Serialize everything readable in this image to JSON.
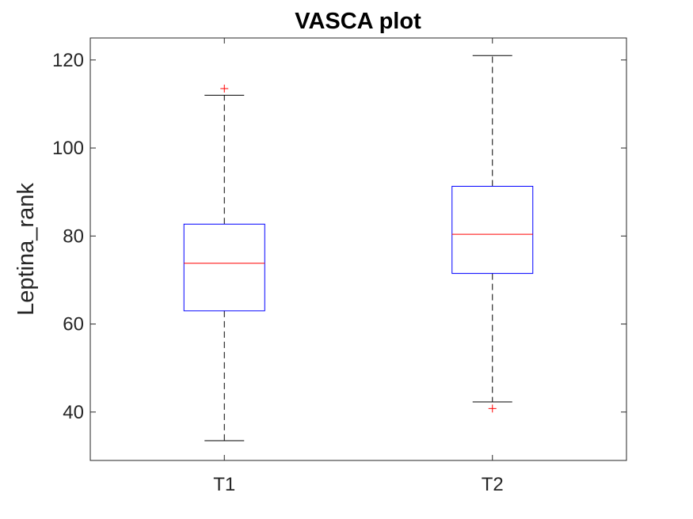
{
  "chart_data": {
    "type": "box",
    "title": "VASCA plot",
    "ylabel": "Leptina_rank",
    "xlabel": "",
    "categories": [
      "T1",
      "T2"
    ],
    "ylim": [
      29,
      125
    ],
    "yticks": [
      40,
      60,
      80,
      100,
      120
    ],
    "grid": false,
    "legend": "none",
    "boxes": [
      {
        "category": "T1",
        "whisker_low": 33.5,
        "q1": 63,
        "median": 73.8,
        "q3": 82.7,
        "whisker_high": 112,
        "outliers": [
          113.5
        ]
      },
      {
        "category": "T2",
        "whisker_low": 42.3,
        "q1": 71.5,
        "median": 80.4,
        "q3": 91.3,
        "whisker_high": 121,
        "outliers": [
          40.8
        ]
      }
    ],
    "colors": {
      "box": "#0000ff",
      "median": "#ff0000",
      "whisker": "#000000",
      "outlier": "#ff0000",
      "axis": "#262626"
    }
  }
}
